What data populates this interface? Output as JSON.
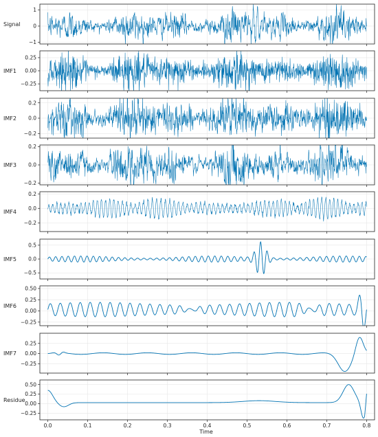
{
  "chart_data": {
    "type": "line",
    "x_axis": {
      "xlabel": "Time",
      "xlim": [
        -0.02,
        0.82
      ],
      "ticks": [
        0.0,
        0.1,
        0.2,
        0.3,
        0.4,
        0.5,
        0.6,
        0.7,
        0.8
      ],
      "tick_labels": [
        "0.0",
        "0.1",
        "0.2",
        "0.3",
        "0.4",
        "0.5",
        "0.6",
        "0.7",
        "0.8"
      ]
    },
    "grid": true,
    "line_color": "#0072b2",
    "series": [
      {
        "label": "Signal",
        "ylim": [
          -1.1,
          1.35
        ],
        "yticks": [
          -1,
          0,
          1
        ],
        "ytick_labels": [
          "−1",
          "0",
          "1"
        ],
        "shape": "broadband noise",
        "amplitude": 0.5,
        "values_summary": "broadband noise around 0, mostly within ±0.6, with a burst near t=0.5–0.55 reaching about +1.2 and −0.9"
      },
      {
        "label": "IMF1",
        "ylim": [
          -0.38,
          0.38
        ],
        "yticks": [
          -0.25,
          0.0,
          0.25
        ],
        "ytick_labels": [
          "−0.25",
          "0.00",
          "0.25"
        ],
        "shape": "high-frequency noise",
        "amplitude": 0.13,
        "values_summary": "high-frequency noise, amplitude about ±0.3"
      },
      {
        "label": "IMF2",
        "ylim": [
          -0.26,
          0.26
        ],
        "yticks": [
          -0.2,
          0.0,
          0.2
        ],
        "ytick_labels": [
          "−0.2",
          "0.0",
          "0.2"
        ],
        "shape": "high-frequency noise",
        "amplitude": 0.085,
        "values_summary": "high-frequency noise, amplitude about ±0.25"
      },
      {
        "label": "IMF3",
        "ylim": [
          -0.22,
          0.22
        ],
        "yticks": [
          -0.2,
          0.0,
          0.2
        ],
        "ytick_labels": [
          "−0.2",
          "0.0",
          "0.2"
        ],
        "shape": "high-frequency noise",
        "amplitude": 0.07,
        "values_summary": "noise, amplitude about ±0.2"
      },
      {
        "label": "IMF4",
        "ylim": [
          -0.32,
          0.23
        ],
        "yticks": [
          -0.2,
          0.0,
          0.2
        ],
        "ytick_labels": [
          "−0.2",
          "0.0",
          "0.2"
        ],
        "shape": "bursty oscillation",
        "amplitude": 0.14,
        "values_summary": "bursty oscillation, amplitude up to about ±0.25"
      },
      {
        "label": "IMF5",
        "ylim": [
          -0.72,
          0.72
        ],
        "yticks": [
          -0.5,
          0.0,
          0.5
        ],
        "ytick_labels": [
          "−0.5",
          "0.0",
          "0.5"
        ],
        "shape": "oscillation with packet",
        "amplitude": 0.1,
        "values_summary": "oscillation with amplitude about ±0.1, large packet near t≈0.52–0.55 reaching about ±0.65"
      },
      {
        "label": "IMF6",
        "ylim": [
          -0.33,
          0.56
        ],
        "yticks": [
          -0.25,
          0.0,
          0.25,
          0.5
        ],
        "ytick_labels": [
          "−0.25",
          "0.00",
          "0.25",
          "0.50"
        ],
        "shape": "regular oscillation",
        "amplitude": 0.13,
        "values_summary": "regular oscillation about ±0.15, peak near t=0.79 about 0.5"
      },
      {
        "label": "IMF7",
        "ylim": [
          -0.48,
          0.5
        ],
        "yticks": [
          -0.25,
          0.0,
          0.25
        ],
        "ytick_labels": [
          "−0.25",
          "0.00",
          "0.25"
        ],
        "shape": "slow oscillation",
        "amplitude": 0.02,
        "values_summary": "slow oscillation near 0, dip near t≈0.74 to −0.4 and peak near t≈0.78 at +0.4"
      },
      {
        "label": "Residue",
        "ylim": [
          -0.42,
          0.62
        ],
        "yticks": [
          -0.25,
          0.0,
          0.25,
          0.5
        ],
        "ytick_labels": [
          "−0.25",
          "0.00",
          "0.25",
          "0.50"
        ],
        "shape": "smooth trend",
        "amplitude": 0,
        "values_summary": "starts at 0.35, dips to −0.08 near t≈0.04, stays near 0.0–0.1 until t≈0.7, rises to 0.5 near t≈0.76, falls to −0.35 near t≈0.79, ends near 0.25"
      }
    ]
  }
}
